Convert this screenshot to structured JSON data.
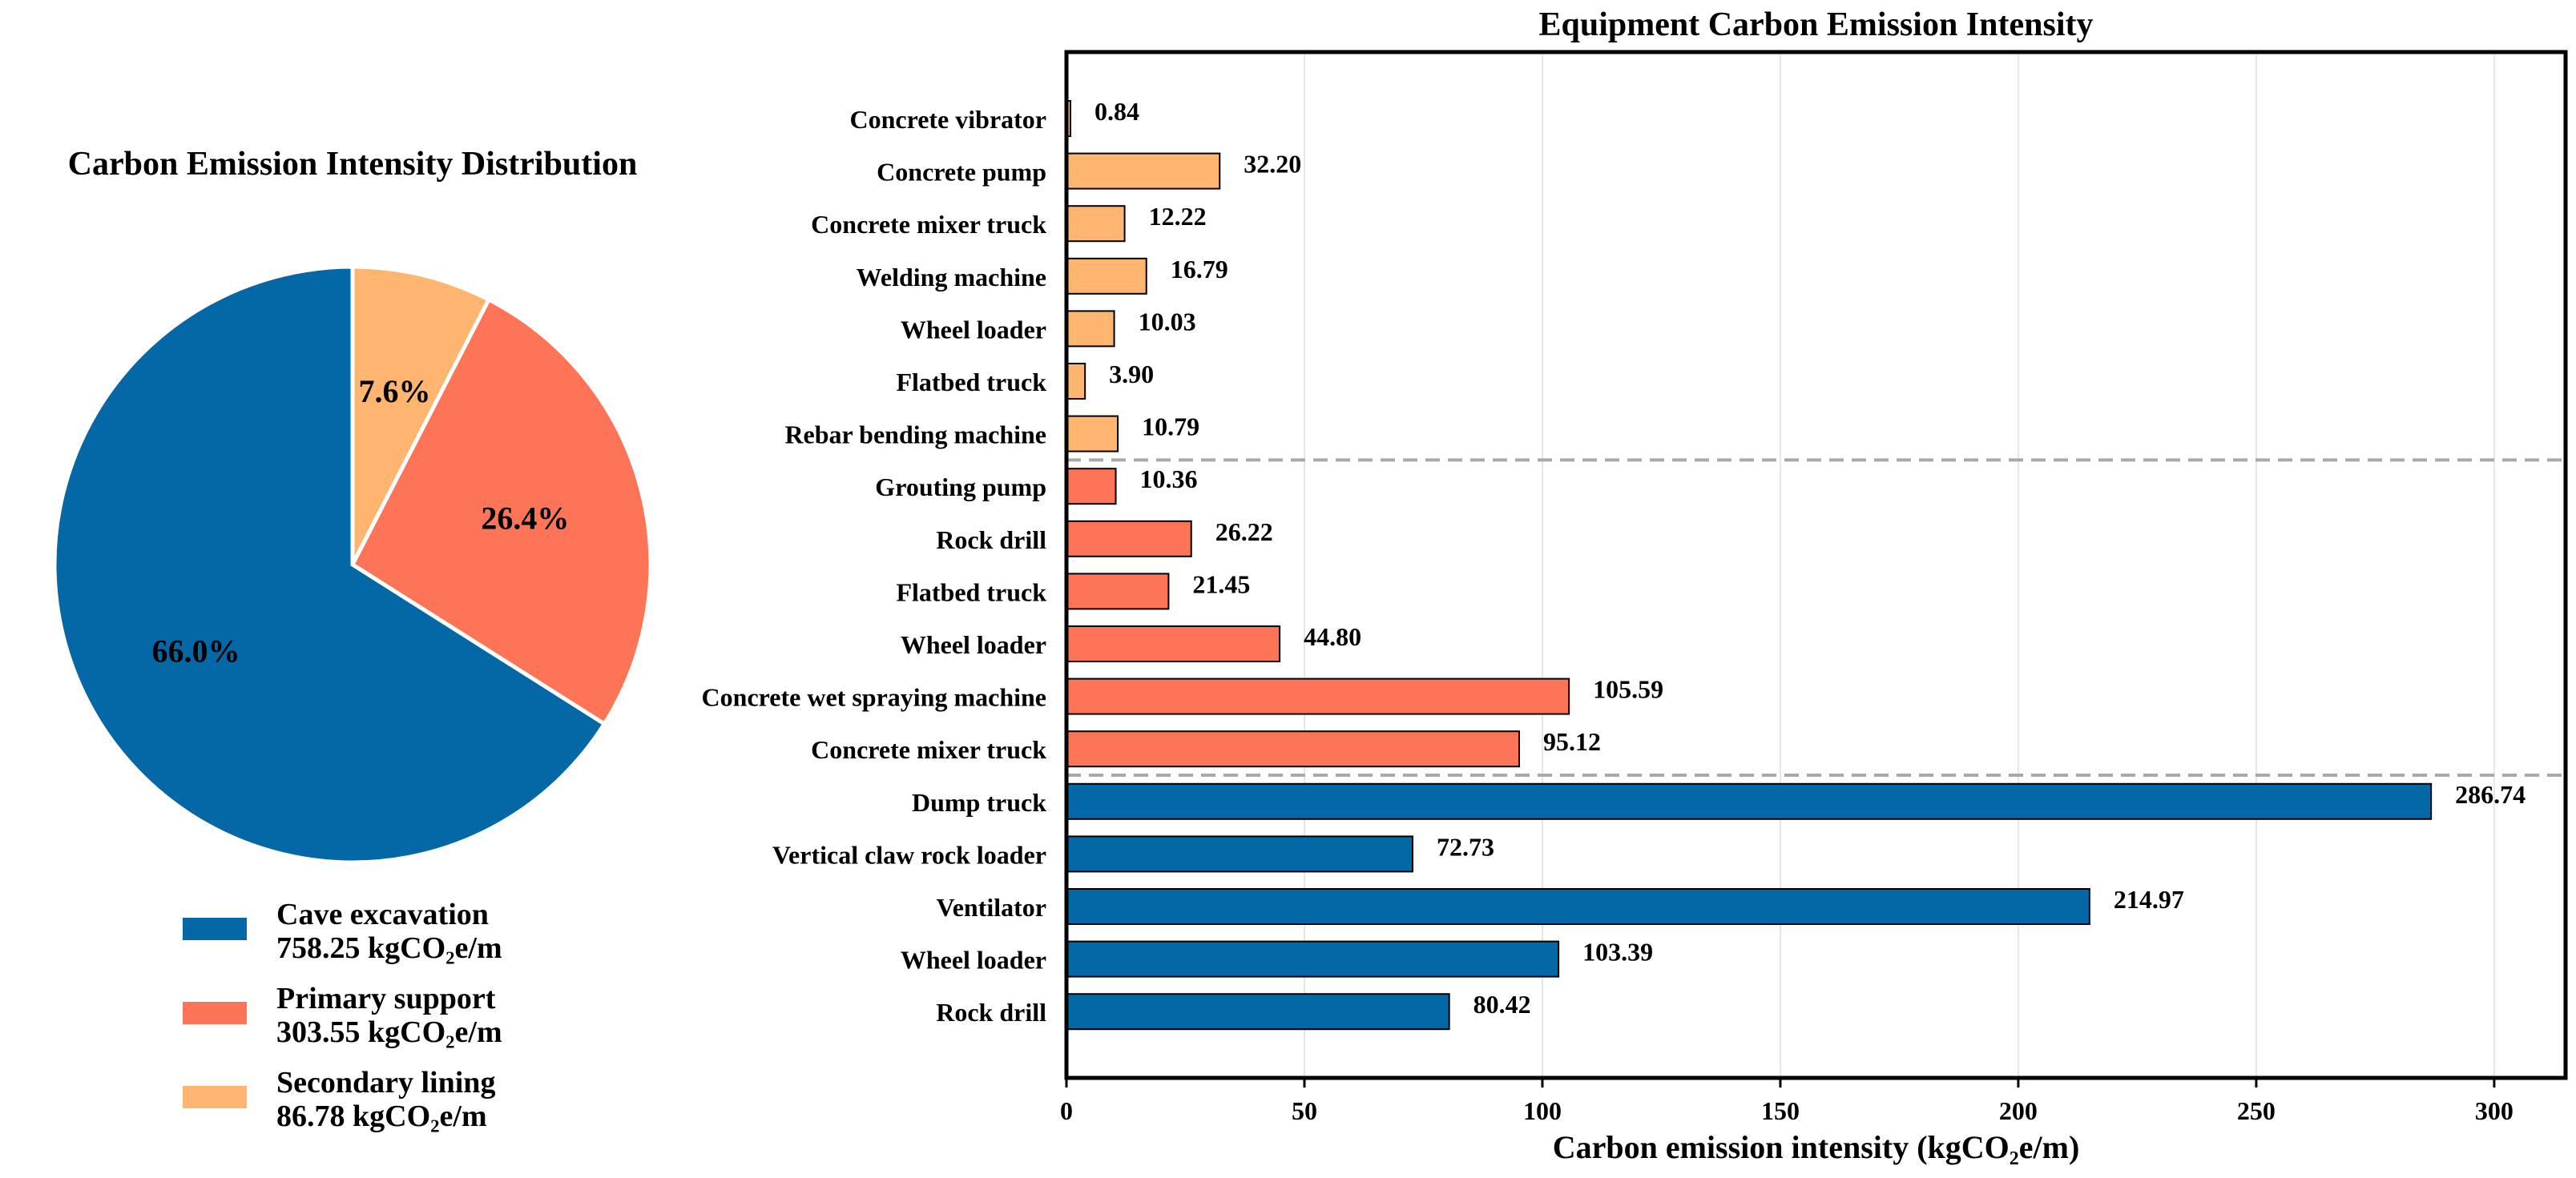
{
  "colors": {
    "cave_excavation": "#0468a6",
    "primary_support": "#fd7556",
    "secondary_lining": "#feb56f",
    "separator": "#a9a9a9",
    "grid": "#e6e6e6"
  },
  "chart_data": [
    {
      "type": "pie",
      "title": "Carbon Emission Intensity Distribution",
      "slices": [
        {
          "key": "cave_excavation",
          "label": "Cave excavation",
          "value": 758.25,
          "percent_label": "66.0%",
          "legend_value": "758.25 kgCO₂e/m"
        },
        {
          "key": "primary_support",
          "label": "Primary support",
          "value": 303.55,
          "percent_label": "26.4%",
          "legend_value": "303.55 kgCO₂e/m"
        },
        {
          "key": "secondary_lining",
          "label": "Secondary lining",
          "value": 86.78,
          "percent_label": "7.6%",
          "legend_value": "86.78 kgCO₂e/m"
        }
      ],
      "legend": "bottom"
    },
    {
      "type": "bar",
      "orientation": "horizontal",
      "title": "Equipment Carbon Emission Intensity",
      "xlabel": "Carbon emission intensity (kgCO₂e/m)",
      "xlim": [
        0,
        315
      ],
      "xticks": [
        0,
        50,
        100,
        150,
        200,
        250,
        300
      ],
      "grid": "x",
      "items": [
        {
          "label": "Concrete vibrator",
          "value": 0.84,
          "value_label": "0.84",
          "group": "secondary_lining"
        },
        {
          "label": "Concrete pump",
          "value": 32.2,
          "value_label": "32.20",
          "group": "secondary_lining"
        },
        {
          "label": "Concrete mixer truck",
          "value": 12.22,
          "value_label": "12.22",
          "group": "secondary_lining"
        },
        {
          "label": "Welding machine",
          "value": 16.79,
          "value_label": "16.79",
          "group": "secondary_lining"
        },
        {
          "label": "Wheel loader",
          "value": 10.03,
          "value_label": "10.03",
          "group": "secondary_lining"
        },
        {
          "label": "Flatbed truck",
          "value": 3.9,
          "value_label": "3.90",
          "group": "secondary_lining"
        },
        {
          "label": "Rebar bending machine",
          "value": 10.79,
          "value_label": "10.79",
          "group": "secondary_lining"
        },
        {
          "label": "Grouting pump",
          "value": 10.36,
          "value_label": "10.36",
          "group": "primary_support"
        },
        {
          "label": "Rock drill",
          "value": 26.22,
          "value_label": "26.22",
          "group": "primary_support"
        },
        {
          "label": "Flatbed truck",
          "value": 21.45,
          "value_label": "21.45",
          "group": "primary_support"
        },
        {
          "label": "Wheel loader",
          "value": 44.8,
          "value_label": "44.80",
          "group": "primary_support"
        },
        {
          "label": "Concrete wet spraying machine",
          "value": 105.59,
          "value_label": "105.59",
          "group": "primary_support"
        },
        {
          "label": "Concrete mixer truck",
          "value": 95.12,
          "value_label": "95.12",
          "group": "primary_support"
        },
        {
          "label": "Dump truck",
          "value": 286.74,
          "value_label": "286.74",
          "group": "cave_excavation"
        },
        {
          "label": "Vertical claw rock loader",
          "value": 72.73,
          "value_label": "72.73",
          "group": "cave_excavation"
        },
        {
          "label": "Ventilator",
          "value": 214.97,
          "value_label": "214.97",
          "group": "cave_excavation"
        },
        {
          "label": "Wheel loader",
          "value": 103.39,
          "value_label": "103.39",
          "group": "cave_excavation"
        },
        {
          "label": "Rock drill",
          "value": 80.42,
          "value_label": "80.42",
          "group": "cave_excavation"
        }
      ],
      "group_separators": "dashed"
    }
  ]
}
